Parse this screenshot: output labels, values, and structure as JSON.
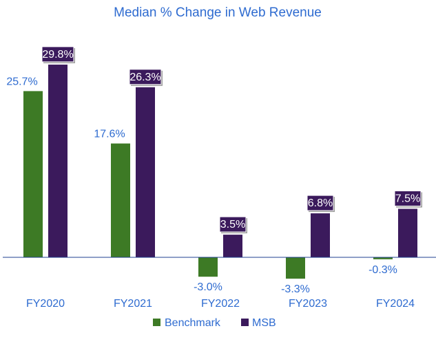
{
  "chart_data": {
    "type": "bar",
    "title": "Median % Change in Web Revenue",
    "categories": [
      "FY2020",
      "FY2021",
      "FY2022",
      "FY2023",
      "FY2024"
    ],
    "series": [
      {
        "name": "Benchmark",
        "color": "#3d7a25",
        "values": [
          25.7,
          17.6,
          -3.0,
          -3.3,
          -0.3
        ],
        "labels": [
          "25.7%",
          "17.6%",
          "-3.0%",
          "-3.3%",
          "-0.3%"
        ]
      },
      {
        "name": "MSB",
        "color": "#3b1a5c",
        "values": [
          29.8,
          26.3,
          3.5,
          6.8,
          7.5
        ],
        "labels": [
          "29.8%",
          "26.3%",
          "3.5%",
          "6.8%",
          "7.5%"
        ]
      }
    ],
    "xlabel": "",
    "ylabel": "",
    "ylim": [
      -4,
      30
    ],
    "grid": false,
    "legend": "bottom"
  }
}
